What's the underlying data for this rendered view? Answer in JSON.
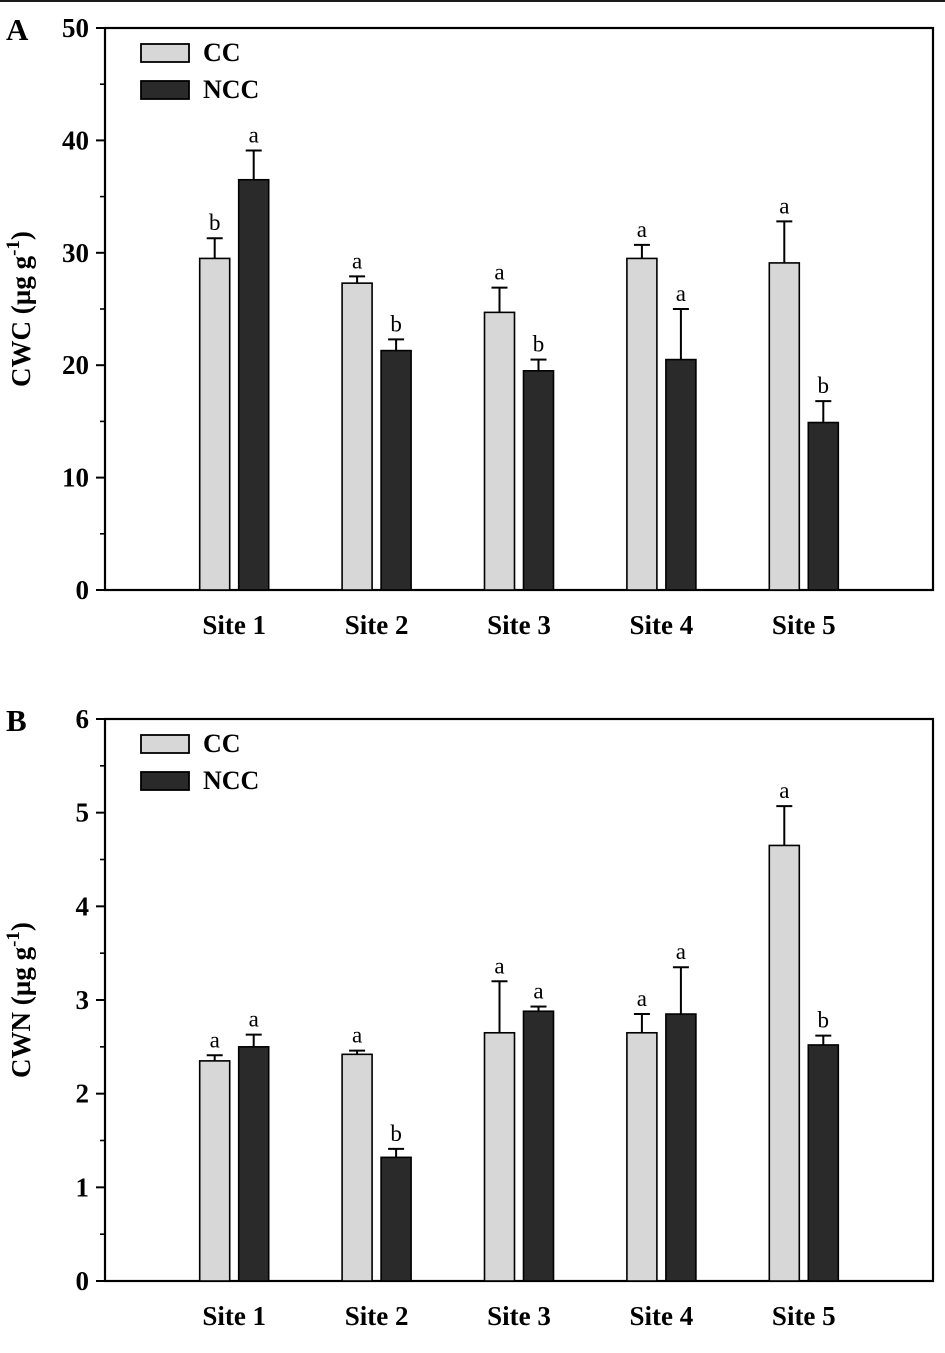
{
  "figure": {
    "background": "#ffffff",
    "axis_color": "#000000",
    "series_colors": {
      "CC": "#d7d7d7",
      "NCC": "#2a2a2a"
    },
    "bar_outline": "#000000",
    "legend_labels": [
      "CC",
      "NCC"
    ],
    "legend_position": "upper-left"
  },
  "chart_data": [
    {
      "type": "bar",
      "panel": "A",
      "title": "",
      "xlabel": "",
      "ylabel": {
        "prefix": "CWC (µg g",
        "superscript": "-1",
        "suffix": ")"
      },
      "ylim": [
        0,
        50
      ],
      "yticks": [
        0,
        10,
        20,
        30,
        40,
        50
      ],
      "ytick_minor_step": 5,
      "grid": false,
      "categories": [
        "Site 1",
        "Site 2",
        "Site 3",
        "Site 4",
        "Site 5"
      ],
      "series": [
        {
          "name": "CC",
          "values": [
            29.5,
            27.3,
            24.7,
            29.5,
            29.1
          ],
          "errors": [
            1.8,
            0.6,
            2.2,
            1.2,
            3.7
          ],
          "letters": [
            "b",
            "a",
            "a",
            "a",
            "a"
          ]
        },
        {
          "name": "NCC",
          "values": [
            36.5,
            21.3,
            19.5,
            20.5,
            14.9
          ],
          "errors": [
            2.6,
            1.0,
            1.0,
            4.5,
            1.9
          ],
          "letters": [
            "a",
            "b",
            "b",
            "a",
            "b"
          ]
        }
      ]
    },
    {
      "type": "bar",
      "panel": "B",
      "title": "",
      "xlabel": "",
      "ylabel": {
        "prefix": "CWN (µg g",
        "superscript": "-1",
        "suffix": ")"
      },
      "ylim": [
        0,
        6
      ],
      "yticks": [
        0,
        1,
        2,
        3,
        4,
        5,
        6
      ],
      "ytick_minor_step": 0.5,
      "grid": false,
      "categories": [
        "Site 1",
        "Site 2",
        "Site 3",
        "Site 4",
        "Site 5"
      ],
      "series": [
        {
          "name": "CC",
          "values": [
            2.35,
            2.42,
            2.65,
            2.65,
            4.65
          ],
          "errors": [
            0.06,
            0.04,
            0.55,
            0.2,
            0.42
          ],
          "letters": [
            "a",
            "a",
            "a",
            "a",
            "a"
          ]
        },
        {
          "name": "NCC",
          "values": [
            2.5,
            1.32,
            2.88,
            2.85,
            2.52
          ],
          "errors": [
            0.13,
            0.09,
            0.05,
            0.5,
            0.1
          ],
          "letters": [
            "a",
            "b",
            "a",
            "a",
            "b"
          ]
        }
      ]
    }
  ]
}
